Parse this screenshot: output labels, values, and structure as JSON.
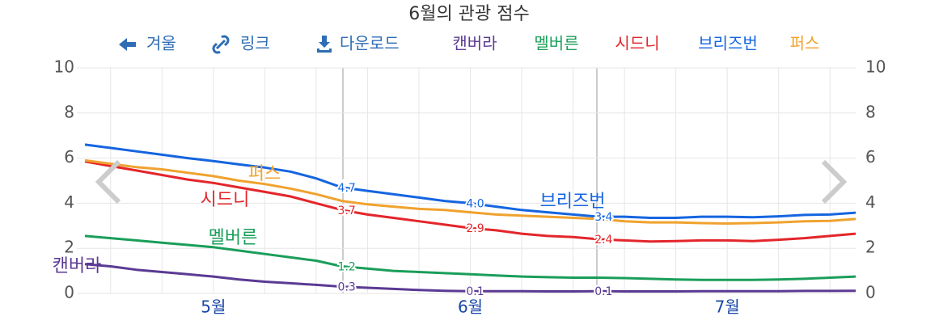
{
  "toolbar": {
    "items": [
      "겨울",
      "링크",
      "다운로드"
    ]
  },
  "chart_data": {
    "type": "line",
    "title": "6월의 관광 점수",
    "categories": [
      null,
      null,
      null,
      null,
      null,
      "5월",
      null,
      null,
      null,
      null,
      null,
      null,
      null,
      null,
      null,
      "6월",
      null,
      null,
      null,
      null,
      null,
      null,
      null,
      null,
      null,
      "7월",
      null,
      null,
      null,
      null,
      null
    ],
    "series": [
      {
        "name": "캔버라",
        "color": "#5b3a94",
        "values": [
          1.3,
          1.2,
          1.05,
          0.95,
          0.85,
          0.75,
          0.62,
          0.52,
          0.45,
          0.38,
          0.3,
          0.25,
          0.2,
          0.15,
          0.12,
          0.1,
          0.1,
          0.1,
          0.09,
          0.09,
          0.1,
          0.09,
          0.09,
          0.09,
          0.1,
          0.1,
          0.1,
          0.1,
          0.11,
          0.11,
          0.12
        ],
        "value_labels": [
          null,
          null,
          null,
          null,
          null,
          null,
          null,
          null,
          null,
          null,
          "0.3",
          null,
          null,
          null,
          null,
          "0.1",
          null,
          null,
          null,
          null,
          "0.1",
          null,
          null,
          null,
          null,
          null,
          null,
          null,
          null,
          null,
          null
        ]
      },
      {
        "name": "멜버른",
        "color": "#1a9e5a",
        "values": [
          2.55,
          2.45,
          2.35,
          2.25,
          2.15,
          2.05,
          1.9,
          1.75,
          1.6,
          1.45,
          1.2,
          1.1,
          1.0,
          0.95,
          0.9,
          0.85,
          0.8,
          0.75,
          0.72,
          0.7,
          0.7,
          0.68,
          0.65,
          0.62,
          0.6,
          0.6,
          0.6,
          0.62,
          0.65,
          0.7,
          0.75
        ],
        "value_labels": [
          null,
          null,
          null,
          null,
          null,
          null,
          null,
          null,
          null,
          null,
          "1.2",
          null,
          null,
          null,
          null,
          null,
          null,
          null,
          null,
          null,
          null,
          null,
          null,
          null,
          null,
          null,
          null,
          null,
          null,
          null,
          null
        ]
      },
      {
        "name": "시드니",
        "color": "#e3262b",
        "values": [
          5.85,
          5.65,
          5.45,
          5.25,
          5.05,
          4.9,
          4.7,
          4.5,
          4.3,
          4.0,
          3.7,
          3.5,
          3.35,
          3.2,
          3.05,
          2.9,
          2.8,
          2.65,
          2.55,
          2.5,
          2.4,
          2.35,
          2.3,
          2.32,
          2.35,
          2.35,
          2.32,
          2.38,
          2.45,
          2.55,
          2.65
        ],
        "value_labels": [
          null,
          null,
          null,
          null,
          null,
          null,
          null,
          null,
          null,
          null,
          "3.7",
          null,
          null,
          null,
          null,
          "2.9",
          null,
          null,
          null,
          null,
          "2.4",
          null,
          null,
          null,
          null,
          null,
          null,
          null,
          null,
          null,
          null
        ]
      },
      {
        "name": "브리즈번",
        "color": "#1565e0",
        "values": [
          6.6,
          6.45,
          6.3,
          6.15,
          6.0,
          5.87,
          5.72,
          5.58,
          5.4,
          5.1,
          4.7,
          4.55,
          4.4,
          4.25,
          4.1,
          4.0,
          3.85,
          3.7,
          3.6,
          3.5,
          3.4,
          3.4,
          3.35,
          3.35,
          3.4,
          3.4,
          3.38,
          3.42,
          3.48,
          3.5,
          3.58
        ],
        "value_labels": [
          null,
          null,
          null,
          null,
          null,
          null,
          null,
          null,
          null,
          null,
          "4.7",
          null,
          null,
          null,
          null,
          "4.0",
          null,
          null,
          null,
          null,
          "3.4",
          null,
          null,
          null,
          null,
          null,
          null,
          null,
          null,
          null,
          null
        ]
      },
      {
        "name": "퍼스",
        "color": "#f0a22e",
        "values": [
          5.9,
          5.75,
          5.6,
          5.5,
          5.35,
          5.2,
          5.0,
          4.85,
          4.65,
          4.4,
          4.1,
          3.95,
          3.85,
          3.75,
          3.7,
          3.6,
          3.5,
          3.45,
          3.4,
          3.35,
          3.3,
          3.2,
          3.15,
          3.15,
          3.12,
          3.1,
          3.12,
          3.15,
          3.2,
          3.22,
          3.3
        ],
        "value_labels": [
          null,
          null,
          null,
          null,
          null,
          null,
          null,
          null,
          null,
          null,
          null,
          null,
          null,
          null,
          null,
          null,
          null,
          null,
          null,
          null,
          null,
          null,
          null,
          null,
          null,
          null,
          null,
          null,
          null,
          null,
          null
        ]
      }
    ],
    "ylim": [
      0,
      10
    ],
    "yticks": [
      0,
      2,
      4,
      6,
      8,
      10
    ],
    "y2lim": [
      0,
      10
    ],
    "y2ticks": [
      0,
      2,
      4,
      6,
      8,
      10
    ],
    "grid": true
  }
}
